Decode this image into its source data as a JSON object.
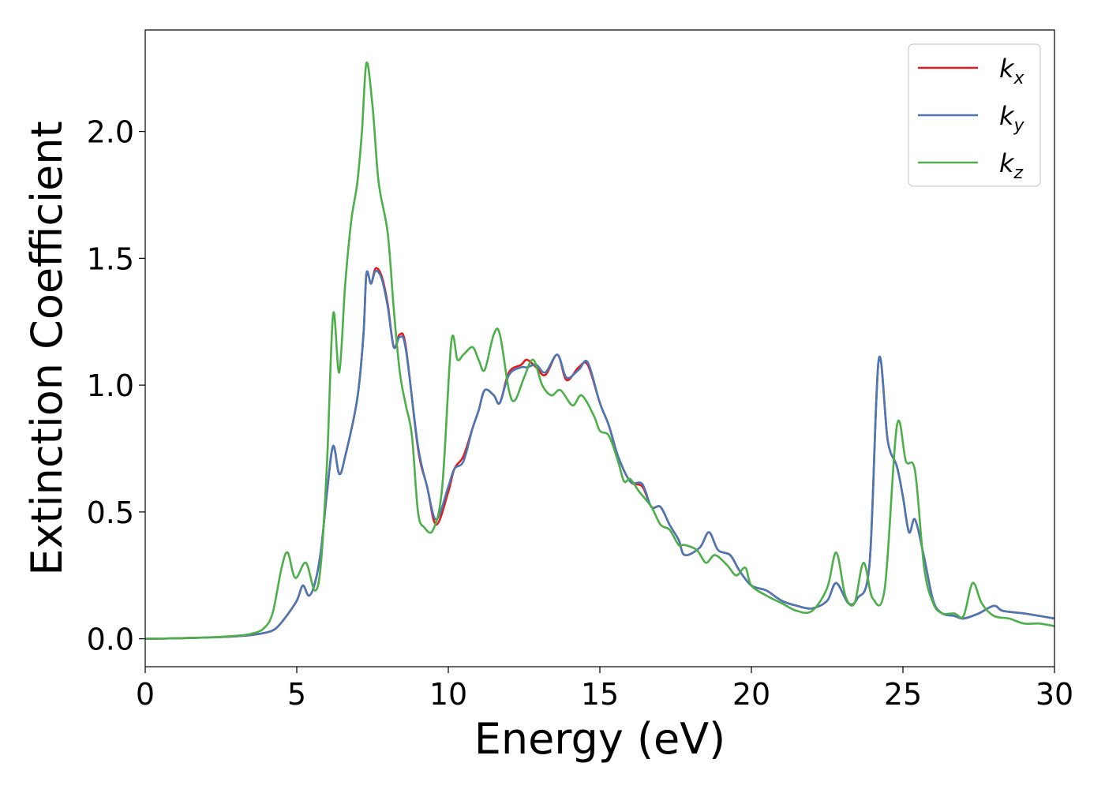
{
  "chart_data": {
    "type": "line",
    "xlabel": "Energy (eV)",
    "ylabel": "Extinction Coefficient",
    "xlim": [
      0,
      30
    ],
    "ylim": [
      -0.11,
      2.4
    ],
    "xticks": [
      0,
      5,
      10,
      15,
      20,
      25,
      30
    ],
    "xtick_labels": [
      "0",
      "5",
      "10",
      "15",
      "20",
      "25",
      "30"
    ],
    "yticks": [
      0.0,
      0.5,
      1.0,
      1.5,
      2.0
    ],
    "ytick_labels": [
      "0.0",
      "0.5",
      "1.0",
      "1.5",
      "2.0"
    ],
    "grid": false,
    "legend_position": "top-right",
    "series": [
      {
        "name": "k_x",
        "label_base": "k",
        "label_sub": "x",
        "color": "#e41a1c",
        "points": [
          [
            0,
            0
          ],
          [
            1,
            0.002
          ],
          [
            2,
            0.005
          ],
          [
            3,
            0.01
          ],
          [
            3.5,
            0.015
          ],
          [
            4,
            0.025
          ],
          [
            4.3,
            0.04
          ],
          [
            4.6,
            0.08
          ],
          [
            5,
            0.15
          ],
          [
            5.2,
            0.21
          ],
          [
            5.4,
            0.17
          ],
          [
            5.6,
            0.22
          ],
          [
            5.8,
            0.35
          ],
          [
            6,
            0.58
          ],
          [
            6.2,
            0.76
          ],
          [
            6.4,
            0.65
          ],
          [
            6.6,
            0.72
          ],
          [
            7,
            0.95
          ],
          [
            7.2,
            1.2
          ],
          [
            7.3,
            1.44
          ],
          [
            7.45,
            1.4
          ],
          [
            7.6,
            1.46
          ],
          [
            7.8,
            1.43
          ],
          [
            8,
            1.32
          ],
          [
            8.2,
            1.15
          ],
          [
            8.4,
            1.2
          ],
          [
            8.6,
            1.15
          ],
          [
            9,
            0.75
          ],
          [
            9.3,
            0.6
          ],
          [
            9.6,
            0.45
          ],
          [
            10,
            0.58
          ],
          [
            10.2,
            0.67
          ],
          [
            10.5,
            0.72
          ],
          [
            10.8,
            0.83
          ],
          [
            11,
            0.9
          ],
          [
            11.2,
            0.98
          ],
          [
            11.5,
            0.96
          ],
          [
            11.7,
            0.93
          ],
          [
            12,
            1.05
          ],
          [
            12.4,
            1.08
          ],
          [
            12.6,
            1.1
          ],
          [
            12.9,
            1.07
          ],
          [
            13.2,
            1.04
          ],
          [
            13.6,
            1.12
          ],
          [
            13.9,
            1.02
          ],
          [
            14.3,
            1.07
          ],
          [
            14.6,
            1.08
          ],
          [
            15,
            0.93
          ],
          [
            15.3,
            0.84
          ],
          [
            15.6,
            0.72
          ],
          [
            16,
            0.62
          ],
          [
            16.4,
            0.6
          ],
          [
            16.7,
            0.52
          ],
          [
            17,
            0.52
          ],
          [
            17.3,
            0.45
          ],
          [
            17.6,
            0.39
          ],
          [
            17.8,
            0.33
          ],
          [
            18.3,
            0.36
          ],
          [
            18.6,
            0.42
          ],
          [
            18.9,
            0.35
          ],
          [
            19.3,
            0.33
          ],
          [
            19.6,
            0.27
          ],
          [
            20,
            0.21
          ],
          [
            20.5,
            0.19
          ],
          [
            21,
            0.15
          ],
          [
            21.5,
            0.13
          ],
          [
            22,
            0.12
          ],
          [
            22.5,
            0.15
          ],
          [
            22.8,
            0.22
          ],
          [
            23.2,
            0.14
          ],
          [
            23.5,
            0.16
          ],
          [
            23.9,
            0.3
          ],
          [
            24.2,
            1.1
          ],
          [
            24.5,
            0.78
          ],
          [
            24.8,
            0.68
          ],
          [
            25,
            0.56
          ],
          [
            25.2,
            0.42
          ],
          [
            25.4,
            0.47
          ],
          [
            25.7,
            0.32
          ],
          [
            26,
            0.15
          ],
          [
            26.3,
            0.1
          ],
          [
            26.7,
            0.09
          ],
          [
            27,
            0.08
          ],
          [
            27.5,
            0.1
          ],
          [
            28,
            0.13
          ],
          [
            28.3,
            0.11
          ],
          [
            29,
            0.1
          ],
          [
            30,
            0.08
          ]
        ]
      },
      {
        "name": "k_y",
        "label_base": "k",
        "label_sub": "y",
        "color": "#4a78b4",
        "points": [
          [
            0,
            0
          ],
          [
            1,
            0.002
          ],
          [
            2,
            0.005
          ],
          [
            3,
            0.01
          ],
          [
            3.5,
            0.015
          ],
          [
            4,
            0.025
          ],
          [
            4.3,
            0.04
          ],
          [
            4.6,
            0.08
          ],
          [
            5,
            0.15
          ],
          [
            5.2,
            0.21
          ],
          [
            5.4,
            0.17
          ],
          [
            5.6,
            0.22
          ],
          [
            5.8,
            0.35
          ],
          [
            6,
            0.58
          ],
          [
            6.2,
            0.76
          ],
          [
            6.4,
            0.65
          ],
          [
            6.6,
            0.72
          ],
          [
            7,
            0.95
          ],
          [
            7.2,
            1.2
          ],
          [
            7.3,
            1.44
          ],
          [
            7.45,
            1.4
          ],
          [
            7.6,
            1.45
          ],
          [
            7.8,
            1.42
          ],
          [
            8,
            1.31
          ],
          [
            8.2,
            1.15
          ],
          [
            8.4,
            1.19
          ],
          [
            8.6,
            1.14
          ],
          [
            9,
            0.76
          ],
          [
            9.3,
            0.6
          ],
          [
            9.6,
            0.47
          ],
          [
            10,
            0.6
          ],
          [
            10.2,
            0.67
          ],
          [
            10.5,
            0.7
          ],
          [
            10.8,
            0.83
          ],
          [
            11,
            0.9
          ],
          [
            11.2,
            0.98
          ],
          [
            11.5,
            0.96
          ],
          [
            11.7,
            0.93
          ],
          [
            12,
            1.04
          ],
          [
            12.4,
            1.07
          ],
          [
            12.6,
            1.07
          ],
          [
            12.9,
            1.08
          ],
          [
            13.2,
            1.05
          ],
          [
            13.6,
            1.12
          ],
          [
            13.9,
            1.03
          ],
          [
            14.3,
            1.06
          ],
          [
            14.6,
            1.09
          ],
          [
            15,
            0.93
          ],
          [
            15.3,
            0.84
          ],
          [
            15.6,
            0.72
          ],
          [
            16,
            0.62
          ],
          [
            16.4,
            0.61
          ],
          [
            16.7,
            0.52
          ],
          [
            17,
            0.52
          ],
          [
            17.3,
            0.45
          ],
          [
            17.6,
            0.39
          ],
          [
            17.8,
            0.33
          ],
          [
            18.3,
            0.36
          ],
          [
            18.6,
            0.42
          ],
          [
            18.9,
            0.35
          ],
          [
            19.3,
            0.33
          ],
          [
            19.6,
            0.27
          ],
          [
            20,
            0.21
          ],
          [
            20.5,
            0.19
          ],
          [
            21,
            0.15
          ],
          [
            21.5,
            0.13
          ],
          [
            22,
            0.12
          ],
          [
            22.5,
            0.15
          ],
          [
            22.8,
            0.22
          ],
          [
            23.2,
            0.14
          ],
          [
            23.5,
            0.16
          ],
          [
            23.9,
            0.3
          ],
          [
            24.2,
            1.1
          ],
          [
            24.5,
            0.78
          ],
          [
            24.8,
            0.68
          ],
          [
            25,
            0.56
          ],
          [
            25.2,
            0.42
          ],
          [
            25.4,
            0.47
          ],
          [
            25.7,
            0.32
          ],
          [
            26,
            0.15
          ],
          [
            26.3,
            0.1
          ],
          [
            26.7,
            0.09
          ],
          [
            27,
            0.08
          ],
          [
            27.5,
            0.1
          ],
          [
            28,
            0.13
          ],
          [
            28.3,
            0.11
          ],
          [
            29,
            0.1
          ],
          [
            30,
            0.08
          ]
        ]
      },
      {
        "name": "k_z",
        "label_base": "k",
        "label_sub": "z",
        "color": "#4daf4a",
        "points": [
          [
            0,
            0
          ],
          [
            1,
            0.002
          ],
          [
            2,
            0.005
          ],
          [
            3,
            0.012
          ],
          [
            3.5,
            0.02
          ],
          [
            3.9,
            0.04
          ],
          [
            4.2,
            0.1
          ],
          [
            4.5,
            0.28
          ],
          [
            4.7,
            0.34
          ],
          [
            4.95,
            0.24
          ],
          [
            5.3,
            0.3
          ],
          [
            5.6,
            0.19
          ],
          [
            5.8,
            0.3
          ],
          [
            6,
            0.7
          ],
          [
            6.2,
            1.28
          ],
          [
            6.4,
            1.05
          ],
          [
            6.6,
            1.4
          ],
          [
            6.8,
            1.65
          ],
          [
            7,
            1.8
          ],
          [
            7.15,
            2.0
          ],
          [
            7.3,
            2.27
          ],
          [
            7.5,
            2.1
          ],
          [
            7.7,
            1.8
          ],
          [
            8,
            1.6
          ],
          [
            8.2,
            1.3
          ],
          [
            8.4,
            1.05
          ],
          [
            8.6,
            0.92
          ],
          [
            8.8,
            0.8
          ],
          [
            9,
            0.5
          ],
          [
            9.2,
            0.44
          ],
          [
            9.5,
            0.43
          ],
          [
            9.8,
            0.6
          ],
          [
            10.1,
            1.17
          ],
          [
            10.3,
            1.1
          ],
          [
            10.5,
            1.12
          ],
          [
            10.8,
            1.15
          ],
          [
            11,
            1.1
          ],
          [
            11.2,
            1.06
          ],
          [
            11.5,
            1.2
          ],
          [
            11.7,
            1.2
          ],
          [
            12,
            0.98
          ],
          [
            12.2,
            0.94
          ],
          [
            12.5,
            1.03
          ],
          [
            12.8,
            1.1
          ],
          [
            13.1,
            1.0
          ],
          [
            13.4,
            0.96
          ],
          [
            13.7,
            0.98
          ],
          [
            14.1,
            0.92
          ],
          [
            14.4,
            0.96
          ],
          [
            14.8,
            0.88
          ],
          [
            15,
            0.82
          ],
          [
            15.3,
            0.8
          ],
          [
            15.6,
            0.7
          ],
          [
            15.8,
            0.62
          ],
          [
            16,
            0.63
          ],
          [
            16.3,
            0.58
          ],
          [
            16.7,
            0.52
          ],
          [
            17,
            0.45
          ],
          [
            17.3,
            0.43
          ],
          [
            17.6,
            0.37
          ],
          [
            17.8,
            0.37
          ],
          [
            18.2,
            0.35
          ],
          [
            18.5,
            0.3
          ],
          [
            18.8,
            0.33
          ],
          [
            19.2,
            0.29
          ],
          [
            19.5,
            0.25
          ],
          [
            19.8,
            0.28
          ],
          [
            20,
            0.21
          ],
          [
            20.5,
            0.17
          ],
          [
            21,
            0.14
          ],
          [
            21.5,
            0.11
          ],
          [
            22,
            0.11
          ],
          [
            22.5,
            0.2
          ],
          [
            22.8,
            0.34
          ],
          [
            23.1,
            0.17
          ],
          [
            23.4,
            0.14
          ],
          [
            23.7,
            0.3
          ],
          [
            24,
            0.16
          ],
          [
            24.4,
            0.2
          ],
          [
            24.8,
            0.84
          ],
          [
            25.1,
            0.7
          ],
          [
            25.4,
            0.66
          ],
          [
            25.7,
            0.28
          ],
          [
            26,
            0.14
          ],
          [
            26.3,
            0.1
          ],
          [
            26.7,
            0.1
          ],
          [
            27,
            0.09
          ],
          [
            27.3,
            0.22
          ],
          [
            27.6,
            0.14
          ],
          [
            28,
            0.09
          ],
          [
            28.5,
            0.08
          ],
          [
            29,
            0.06
          ],
          [
            29.5,
            0.06
          ],
          [
            30,
            0.05
          ]
        ]
      }
    ]
  }
}
